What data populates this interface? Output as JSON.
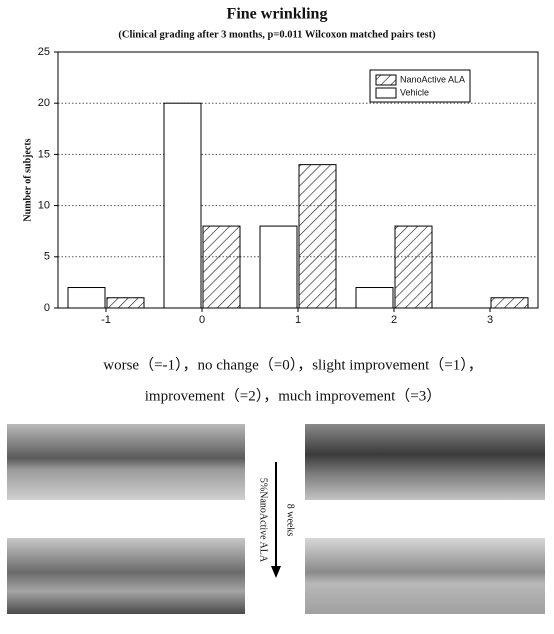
{
  "chart_data": {
    "type": "bar",
    "title": "Fine wrinkling",
    "subtitle": "(Clinical grading after 3 months, p=0.011  Wilcoxon matched pairs test)",
    "y_label": "Number of subjects",
    "categories": [
      "-1",
      "0",
      "1",
      "2",
      "3"
    ],
    "series": [
      {
        "name": "Vehicle",
        "color": "#ffffff",
        "values": [
          2,
          20,
          8,
          2,
          0
        ]
      },
      {
        "name": "NanoActive ALA",
        "color": "#ffffff",
        "hatch": "//",
        "values": [
          1,
          8,
          14,
          8,
          1
        ]
      }
    ],
    "ylim": [
      0,
      25
    ],
    "yticks": [
      0,
      5,
      10,
      15,
      20,
      25
    ],
    "grid": true,
    "grid_style": "dotted",
    "legend": "upper right"
  },
  "caption": {
    "lines": [
      "worse（=-1），no change（=0），slight improvement（=1），",
      "improvement（=2），much improvement（=3）"
    ]
  },
  "figure": {
    "treatment_label": "5%NanoActive ALA",
    "duration_label": "8 weeks"
  }
}
